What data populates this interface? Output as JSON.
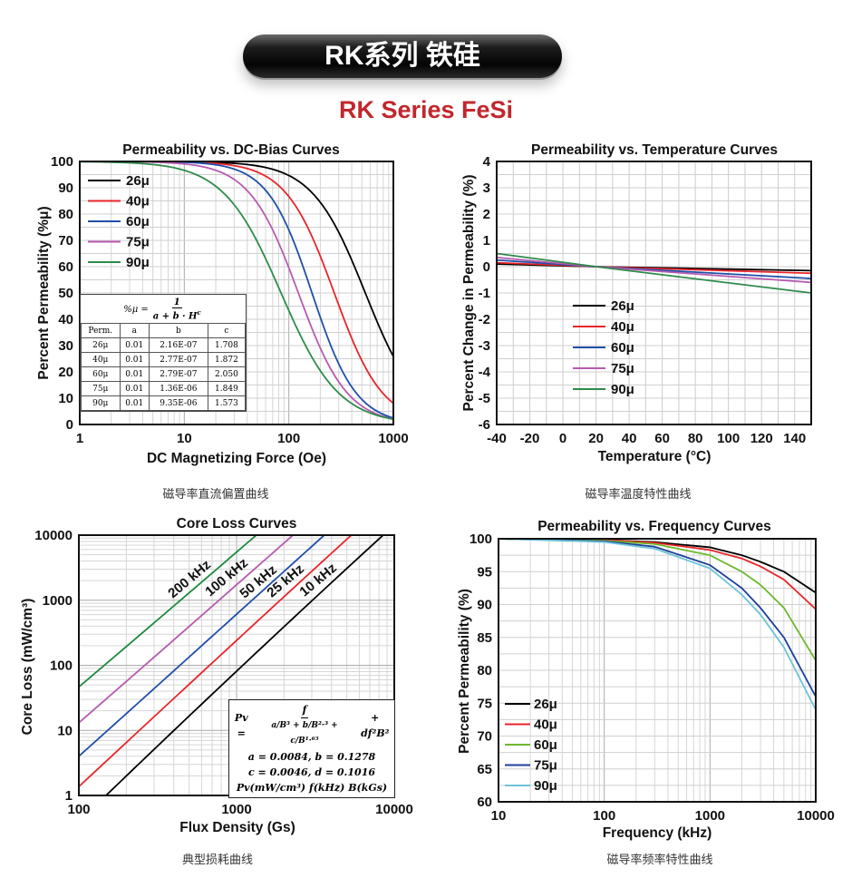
{
  "header": {
    "banner": "RK系列 铁硅",
    "subtitle": "RK Series FeSi"
  },
  "captions": [
    "磁导率直流偏置曲线",
    "磁导率温度特性曲线",
    "典型损耗曲线",
    "磁导率频率特性曲线"
  ],
  "dc_table": {
    "formula_lhs": "%μ =",
    "formula_num": "1",
    "formula_den": "a + b · H",
    "formula_exp": "c",
    "headers": [
      "Perm.",
      "a",
      "b",
      "c"
    ],
    "rows": [
      [
        "26μ",
        "0.01",
        "2.16E-07",
        "1.708"
      ],
      [
        "40μ",
        "0.01",
        "2.77E-07",
        "1.872"
      ],
      [
        "60μ",
        "0.01",
        "2.79E-07",
        "2.050"
      ],
      [
        "75μ",
        "0.01",
        "1.36E-06",
        "1.849"
      ],
      [
        "90μ",
        "0.01",
        "9.35E-06",
        "1.573"
      ]
    ]
  },
  "core_formula": {
    "lhs": "Pv =",
    "num": "f",
    "den": "a/B³ + b/B²·³ + c/B¹·⁶⁵",
    "tail": "+ df²B²",
    "line2": "a = 0.0084, b = 0.1278",
    "line3": "c = 0.0046, d = 0.1016",
    "line4": "Pv(mW/cm³)  f(kHz)  B(kGs)"
  },
  "chart_data": [
    {
      "type": "line",
      "title": "Permeability vs. DC-Bias Curves",
      "xlabel": "DC Magnetizing Force (Oe)",
      "ylabel": "Percent Permeability (%μ)",
      "xscale": "log",
      "xlim": [
        1,
        1000
      ],
      "ylim": [
        0,
        100
      ],
      "xticks": [
        "1",
        "10",
        "100",
        "1000"
      ],
      "yticks": [
        "0",
        "10",
        "20",
        "30",
        "40",
        "50",
        "60",
        "70",
        "80",
        "90",
        "100"
      ],
      "legend_position": "top-left",
      "model": "percent = 1/(a + b*H^c)",
      "series": [
        {
          "name": "26μ",
          "color": "#000000",
          "a": 0.01,
          "b": 2.16e-07,
          "c": 1.708
        },
        {
          "name": "40μ",
          "color": "#e8262a",
          "a": 0.01,
          "b": 2.77e-07,
          "c": 1.872
        },
        {
          "name": "60μ",
          "color": "#1f4fa8",
          "a": 0.01,
          "b": 2.79e-07,
          "c": 2.05
        },
        {
          "name": "75μ",
          "color": "#b75ab0",
          "a": 0.01,
          "b": 1.36e-06,
          "c": 1.849
        },
        {
          "name": "90μ",
          "color": "#2e8b4a",
          "a": 0.01,
          "b": 9.35e-06,
          "c": 1.573
        }
      ]
    },
    {
      "type": "line",
      "title": "Permeability vs. Temperature Curves",
      "xlabel": "Temperature (°C)",
      "ylabel": "Percent Change in Permeability (%)",
      "xlim": [
        -40,
        150
      ],
      "ylim": [
        -6,
        4
      ],
      "xticks": [
        "-40",
        "-20",
        "0",
        "20",
        "40",
        "60",
        "80",
        "100",
        "120",
        "140"
      ],
      "yticks": [
        "-6",
        "-5",
        "-4",
        "-3",
        "-2",
        "-1",
        "0",
        "1",
        "2",
        "3",
        "4"
      ],
      "legend_position": "center-left",
      "x": [
        -40,
        20,
        150
      ],
      "series": [
        {
          "name": "26μ",
          "color": "#000000",
          "values": [
            0.1,
            0,
            -0.15
          ]
        },
        {
          "name": "40μ",
          "color": "#e8262a",
          "values": [
            0.15,
            0,
            -0.25
          ]
        },
        {
          "name": "60μ",
          "color": "#1f4fa8",
          "values": [
            0.25,
            0,
            -0.45
          ]
        },
        {
          "name": "75μ",
          "color": "#b75ab0",
          "values": [
            0.35,
            0,
            -0.6
          ]
        },
        {
          "name": "90μ",
          "color": "#2e8b4a",
          "values": [
            0.5,
            0,
            -1.0
          ]
        }
      ]
    },
    {
      "type": "line",
      "title": "Core Loss Curves",
      "xlabel": "Flux Density (Gs)",
      "ylabel": "Core Loss (mW/cm³)",
      "xscale": "log",
      "yscale": "log",
      "xlim": [
        100,
        10000
      ],
      "ylim": [
        1,
        10000
      ],
      "xticks": [
        "100",
        "1000",
        "10000"
      ],
      "yticks": [
        "1",
        "10",
        "100",
        "1000",
        "10000"
      ],
      "model": {
        "a": 0.0084,
        "b": 0.1278,
        "c": 0.0046,
        "d": 0.1016
      },
      "series": [
        {
          "name": "200 kHz",
          "f_khz": 200,
          "color": "#1e8a3c"
        },
        {
          "name": "100 kHz",
          "f_khz": 100,
          "color": "#b75ab0"
        },
        {
          "name": "50 kHz",
          "f_khz": 50,
          "color": "#1f4fa8"
        },
        {
          "name": "25 kHz",
          "f_khz": 25,
          "color": "#e8262a"
        },
        {
          "name": "10 kHz",
          "f_khz": 10,
          "color": "#000000"
        }
      ]
    },
    {
      "type": "line",
      "title": "Permeability vs. Frequency Curves",
      "xlabel": "Frequency (kHz)",
      "ylabel": "Percent Permeability (%)",
      "xscale": "log",
      "xlim": [
        10,
        10000
      ],
      "ylim": [
        60,
        100
      ],
      "xticks": [
        "10",
        "100",
        "1000",
        "10000"
      ],
      "yticks": [
        "60",
        "65",
        "70",
        "75",
        "80",
        "85",
        "90",
        "95",
        "100"
      ],
      "legend_position": "bottom-left",
      "x": [
        10,
        100,
        300,
        1000,
        2000,
        3000,
        5000,
        10000
      ],
      "series": [
        {
          "name": "26μ",
          "color": "#000000",
          "values": [
            100,
            99.8,
            99.5,
            98.7,
            97.5,
            96.5,
            95.0,
            91.8
          ]
        },
        {
          "name": "40μ",
          "color": "#e8262a",
          "values": [
            100,
            99.8,
            99.4,
            98.3,
            97.0,
            95.8,
            93.8,
            89.3
          ]
        },
        {
          "name": "60μ",
          "color": "#6fb82e",
          "values": [
            100,
            99.7,
            99.2,
            97.5,
            95.0,
            93.0,
            89.5,
            81.5
          ]
        },
        {
          "name": "75μ",
          "color": "#1f3f99",
          "values": [
            100,
            99.6,
            98.8,
            96.0,
            92.5,
            89.5,
            85.0,
            76.0
          ]
        },
        {
          "name": "90μ",
          "color": "#6cc3d8",
          "values": [
            100,
            99.5,
            98.5,
            95.5,
            91.5,
            88.5,
            83.5,
            74.0
          ]
        }
      ]
    }
  ]
}
